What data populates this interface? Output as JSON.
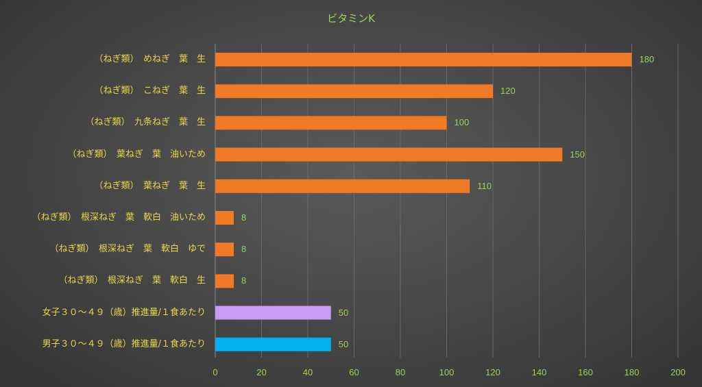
{
  "chart_data": {
    "type": "bar",
    "orientation": "horizontal",
    "title": "ビタミンK",
    "categories": [
      "（ねぎ類）　めねぎ　葉　生",
      "（ねぎ類）　こねぎ　葉　生",
      "（ねぎ類）　九条ねぎ　葉　生",
      "（ねぎ類）　葉ねぎ　葉　油いため",
      "（ねぎ類）　葉ねぎ　葉　生",
      "（ねぎ類）　根深ねぎ　葉　軟白　油いため",
      "（ねぎ類）　根深ねぎ　葉　軟白　ゆで",
      "（ねぎ類）　根深ねぎ　葉　軟白　生",
      "女子３０～４９（歳）推進量/１食あたり",
      "男子３０～４９（歳）推進量/１食あたり"
    ],
    "values": [
      180,
      120,
      100,
      150,
      110,
      8,
      8,
      8,
      50,
      50
    ],
    "value_labels": [
      "180",
      "120",
      "100",
      "150",
      "110",
      "8",
      "8",
      "8",
      "50",
      "50"
    ],
    "bar_colors": [
      "#f07a26",
      "#f07a26",
      "#f07a26",
      "#f07a26",
      "#f07a26",
      "#f07a26",
      "#f07a26",
      "#f07a26",
      "#c89bf5",
      "#00b0f0"
    ],
    "xlim": [
      0,
      200
    ],
    "x_ticks": [
      "0",
      "20",
      "40",
      "60",
      "80",
      "100",
      "120",
      "140",
      "160",
      "180",
      "200"
    ],
    "grid": true,
    "legend": "none"
  }
}
